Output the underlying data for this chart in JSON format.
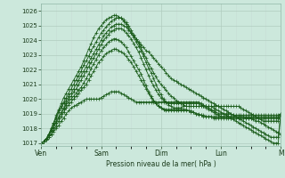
{
  "bg_color": "#cce8dc",
  "grid_color_major": "#aacfbf",
  "grid_color_minor": "#b8d8ca",
  "line_color": "#1a5c1a",
  "xlabel": "Pression niveau de la mer( hPa )",
  "ylim": [
    1016.8,
    1026.5
  ],
  "yticks": [
    1017,
    1018,
    1019,
    1020,
    1021,
    1022,
    1023,
    1024,
    1025,
    1026
  ],
  "days": [
    "Ven",
    "Sam",
    "Dim",
    "Lun",
    "M"
  ],
  "day_positions": [
    0,
    24,
    48,
    72,
    96
  ],
  "n_points": 97,
  "series": [
    [
      1017.0,
      1017.1,
      1017.2,
      1017.4,
      1017.6,
      1017.8,
      1018.0,
      1018.2,
      1018.5,
      1018.7,
      1019.0,
      1019.2,
      1019.4,
      1019.5,
      1019.6,
      1019.7,
      1019.8,
      1019.9,
      1020.0,
      1020.0,
      1020.0,
      1020.0,
      1020.0,
      1020.0,
      1020.1,
      1020.2,
      1020.3,
      1020.4,
      1020.5,
      1020.5,
      1020.5,
      1020.5,
      1020.4,
      1020.3,
      1020.2,
      1020.1,
      1020.0,
      1019.9,
      1019.8,
      1019.8,
      1019.8,
      1019.8,
      1019.8,
      1019.8,
      1019.8,
      1019.8,
      1019.8,
      1019.8,
      1019.8,
      1019.8,
      1019.8,
      1019.8,
      1019.8,
      1019.8,
      1019.8,
      1019.8,
      1019.8,
      1019.8,
      1019.8,
      1019.8,
      1019.8,
      1019.8,
      1019.8,
      1019.8,
      1019.7,
      1019.6,
      1019.5,
      1019.4,
      1019.3,
      1019.2,
      1019.1,
      1019.0,
      1019.0,
      1019.0,
      1019.0,
      1019.0,
      1019.0,
      1018.9,
      1018.9,
      1018.9,
      1018.9,
      1018.9,
      1018.9,
      1018.9,
      1018.9,
      1018.9,
      1018.9,
      1018.9,
      1018.9,
      1018.9,
      1018.9,
      1018.9,
      1018.9,
      1018.9,
      1018.9,
      1018.9,
      1018.9
    ],
    [
      1017.0,
      1017.1,
      1017.2,
      1017.4,
      1017.6,
      1017.9,
      1018.2,
      1018.5,
      1018.8,
      1019.1,
      1019.4,
      1019.6,
      1019.8,
      1020.0,
      1020.2,
      1020.4,
      1020.6,
      1020.8,
      1021.0,
      1021.3,
      1021.6,
      1021.9,
      1022.2,
      1022.5,
      1022.7,
      1022.9,
      1023.1,
      1023.2,
      1023.3,
      1023.4,
      1023.4,
      1023.3,
      1023.2,
      1023.1,
      1022.9,
      1022.7,
      1022.5,
      1022.2,
      1021.9,
      1021.6,
      1021.3,
      1021.0,
      1020.7,
      1020.4,
      1020.1,
      1019.9,
      1019.7,
      1019.5,
      1019.4,
      1019.3,
      1019.2,
      1019.2,
      1019.2,
      1019.2,
      1019.2,
      1019.2,
      1019.2,
      1019.2,
      1019.2,
      1019.2,
      1019.1,
      1019.1,
      1019.0,
      1019.0,
      1018.9,
      1018.9,
      1018.8,
      1018.8,
      1018.8,
      1018.7,
      1018.7,
      1018.7,
      1018.7,
      1018.7,
      1018.7,
      1018.7,
      1018.7,
      1018.7,
      1018.7,
      1018.7,
      1018.7,
      1018.7,
      1018.7,
      1018.7,
      1018.7,
      1018.7,
      1018.7,
      1018.7,
      1018.7,
      1018.7,
      1018.7,
      1018.7,
      1018.7,
      1018.7,
      1018.7,
      1018.7,
      1018.9
    ],
    [
      1017.0,
      1017.1,
      1017.3,
      1017.5,
      1017.8,
      1018.1,
      1018.4,
      1018.7,
      1019.0,
      1019.3,
      1019.6,
      1019.8,
      1020.0,
      1020.2,
      1020.4,
      1020.6,
      1020.8,
      1021.1,
      1021.4,
      1021.7,
      1022.1,
      1022.4,
      1022.7,
      1023.0,
      1023.3,
      1023.5,
      1023.7,
      1023.9,
      1024.0,
      1024.1,
      1024.1,
      1024.0,
      1023.9,
      1023.7,
      1023.5,
      1023.2,
      1022.9,
      1022.6,
      1022.3,
      1022.0,
      1021.7,
      1021.3,
      1020.9,
      1020.5,
      1020.2,
      1019.9,
      1019.7,
      1019.5,
      1019.4,
      1019.3,
      1019.3,
      1019.3,
      1019.3,
      1019.3,
      1019.3,
      1019.3,
      1019.3,
      1019.3,
      1019.3,
      1019.2,
      1019.2,
      1019.1,
      1019.0,
      1018.9,
      1018.9,
      1018.8,
      1018.8,
      1018.8,
      1018.8,
      1018.8,
      1018.8,
      1018.8,
      1018.8,
      1018.8,
      1018.8,
      1018.8,
      1018.8,
      1018.8,
      1018.8,
      1018.8,
      1018.8,
      1018.8,
      1018.7,
      1018.7,
      1018.7,
      1018.6,
      1018.5,
      1018.5,
      1018.4,
      1018.3,
      1018.2,
      1018.1,
      1018.0,
      1017.9,
      1017.8,
      1017.7,
      1017.6
    ],
    [
      1017.0,
      1017.1,
      1017.3,
      1017.5,
      1017.8,
      1018.1,
      1018.5,
      1018.8,
      1019.1,
      1019.4,
      1019.7,
      1020.0,
      1020.2,
      1020.5,
      1020.7,
      1021.0,
      1021.3,
      1021.6,
      1021.9,
      1022.2,
      1022.5,
      1022.8,
      1023.1,
      1023.4,
      1023.7,
      1024.0,
      1024.2,
      1024.4,
      1024.6,
      1024.7,
      1024.8,
      1024.8,
      1024.8,
      1024.7,
      1024.5,
      1024.3,
      1024.1,
      1023.8,
      1023.5,
      1023.2,
      1022.8,
      1022.4,
      1022.0,
      1021.6,
      1021.2,
      1020.9,
      1020.6,
      1020.3,
      1020.1,
      1019.9,
      1019.8,
      1019.7,
      1019.7,
      1019.7,
      1019.7,
      1019.7,
      1019.7,
      1019.7,
      1019.7,
      1019.7,
      1019.7,
      1019.7,
      1019.7,
      1019.7,
      1019.6,
      1019.5,
      1019.4,
      1019.3,
      1019.2,
      1019.1,
      1019.0,
      1018.9,
      1018.8,
      1018.8,
      1018.8,
      1018.8,
      1018.8,
      1018.8,
      1018.8,
      1018.8,
      1018.8,
      1018.8,
      1018.8,
      1018.8,
      1018.8,
      1018.8,
      1018.8,
      1018.8,
      1018.8,
      1018.8,
      1018.8,
      1018.8,
      1018.8,
      1018.8,
      1018.8,
      1018.8,
      1019.0
    ],
    [
      1017.0,
      1017.1,
      1017.3,
      1017.6,
      1017.9,
      1018.3,
      1018.7,
      1019.1,
      1019.4,
      1019.7,
      1019.9,
      1020.2,
      1020.4,
      1020.7,
      1021.0,
      1021.3,
      1021.6,
      1021.9,
      1022.2,
      1022.5,
      1022.8,
      1023.1,
      1023.4,
      1023.7,
      1024.0,
      1024.3,
      1024.5,
      1024.7,
      1024.9,
      1025.0,
      1025.1,
      1025.1,
      1025.1,
      1025.0,
      1024.9,
      1024.7,
      1024.5,
      1024.3,
      1024.1,
      1023.9,
      1023.7,
      1023.5,
      1023.3,
      1023.2,
      1023.0,
      1022.8,
      1022.6,
      1022.4,
      1022.2,
      1022.0,
      1021.8,
      1021.6,
      1021.4,
      1021.3,
      1021.2,
      1021.1,
      1021.0,
      1020.9,
      1020.8,
      1020.7,
      1020.6,
      1020.5,
      1020.4,
      1020.3,
      1020.2,
      1020.1,
      1020.0,
      1019.9,
      1019.8,
      1019.7,
      1019.6,
      1019.5,
      1019.5,
      1019.5,
      1019.5,
      1019.5,
      1019.5,
      1019.5,
      1019.5,
      1019.5,
      1019.4,
      1019.3,
      1019.2,
      1019.1,
      1019.0,
      1018.9,
      1018.8,
      1018.7,
      1018.6,
      1018.5,
      1018.5,
      1018.5,
      1018.5,
      1018.5,
      1018.5,
      1018.5,
      1019.0
    ],
    [
      1017.0,
      1017.1,
      1017.3,
      1017.6,
      1018.0,
      1018.4,
      1018.8,
      1019.2,
      1019.5,
      1019.8,
      1020.1,
      1020.4,
      1020.7,
      1021.0,
      1021.3,
      1021.6,
      1021.9,
      1022.3,
      1022.6,
      1022.9,
      1023.3,
      1023.6,
      1023.9,
      1024.2,
      1024.5,
      1024.7,
      1024.9,
      1025.1,
      1025.3,
      1025.4,
      1025.5,
      1025.5,
      1025.5,
      1025.4,
      1025.2,
      1025.0,
      1024.7,
      1024.4,
      1024.1,
      1023.8,
      1023.5,
      1023.1,
      1022.8,
      1022.4,
      1022.1,
      1021.8,
      1021.5,
      1021.2,
      1021.0,
      1020.8,
      1020.6,
      1020.4,
      1020.2,
      1020.1,
      1019.9,
      1019.8,
      1019.7,
      1019.6,
      1019.5,
      1019.5,
      1019.5,
      1019.5,
      1019.5,
      1019.5,
      1019.5,
      1019.5,
      1019.5,
      1019.5,
      1019.5,
      1019.5,
      1019.5,
      1019.5,
      1019.4,
      1019.3,
      1019.2,
      1019.1,
      1019.0,
      1018.9,
      1018.8,
      1018.7,
      1018.6,
      1018.5,
      1018.4,
      1018.3,
      1018.2,
      1018.1,
      1018.0,
      1017.9,
      1017.8,
      1017.7,
      1017.6,
      1017.5,
      1017.4,
      1017.4,
      1017.4,
      1017.4,
      1019.0
    ],
    [
      1017.0,
      1017.1,
      1017.3,
      1017.6,
      1018.0,
      1018.4,
      1018.9,
      1019.3,
      1019.7,
      1020.1,
      1020.4,
      1020.7,
      1021.0,
      1021.3,
      1021.6,
      1021.9,
      1022.2,
      1022.6,
      1023.0,
      1023.4,
      1023.8,
      1024.2,
      1024.5,
      1024.8,
      1025.0,
      1025.2,
      1025.4,
      1025.5,
      1025.6,
      1025.7,
      1025.7,
      1025.6,
      1025.5,
      1025.3,
      1025.1,
      1024.8,
      1024.5,
      1024.2,
      1023.9,
      1023.6,
      1023.3,
      1022.9,
      1022.5,
      1022.1,
      1021.8,
      1021.4,
      1021.0,
      1020.6,
      1020.3,
      1020.0,
      1019.8,
      1019.6,
      1019.5,
      1019.4,
      1019.4,
      1019.4,
      1019.4,
      1019.5,
      1019.5,
      1019.5,
      1019.5,
      1019.5,
      1019.5,
      1019.5,
      1019.5,
      1019.5,
      1019.5,
      1019.5,
      1019.5,
      1019.4,
      1019.3,
      1019.2,
      1019.1,
      1019.0,
      1018.9,
      1018.8,
      1018.7,
      1018.6,
      1018.5,
      1018.4,
      1018.3,
      1018.2,
      1018.1,
      1018.0,
      1017.9,
      1017.8,
      1017.7,
      1017.6,
      1017.5,
      1017.4,
      1017.3,
      1017.2,
      1017.1,
      1017.0,
      1017.0,
      1017.0,
      1019.0
    ]
  ]
}
